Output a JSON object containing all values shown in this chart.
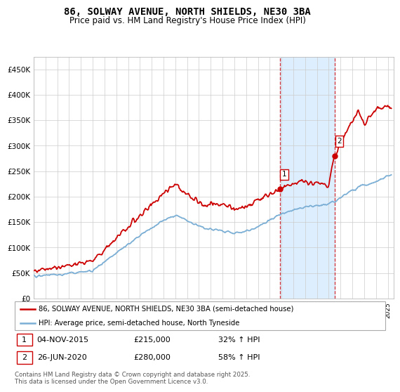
{
  "title": "86, SOLWAY AVENUE, NORTH SHIELDS, NE30 3BA",
  "subtitle": "Price paid vs. HM Land Registry's House Price Index (HPI)",
  "ylim": [
    0,
    475000
  ],
  "yticks": [
    0,
    50000,
    100000,
    150000,
    200000,
    250000,
    300000,
    350000,
    400000,
    450000
  ],
  "ytick_labels": [
    "£0",
    "£50K",
    "£100K",
    "£150K",
    "£200K",
    "£250K",
    "£300K",
    "£350K",
    "£400K",
    "£450K"
  ],
  "xlim_start": 1995.0,
  "xlim_end": 2025.5,
  "sale1_date": 2015.84,
  "sale1_price": 215000,
  "sale2_date": 2020.49,
  "sale2_price": 280000,
  "legend1_text": "86, SOLWAY AVENUE, NORTH SHIELDS, NE30 3BA (semi-detached house)",
  "legend2_text": "HPI: Average price, semi-detached house, North Tyneside",
  "annotation1_date": "04-NOV-2015",
  "annotation1_price": "£215,000",
  "annotation1_hpi": "32% ↑ HPI",
  "annotation2_date": "26-JUN-2020",
  "annotation2_price": "£280,000",
  "annotation2_hpi": "58% ↑ HPI",
  "footnote": "Contains HM Land Registry data © Crown copyright and database right 2025.\nThis data is licensed under the Open Government Licence v3.0.",
  "red_color": "#cc0000",
  "blue_color": "#7aaed4",
  "shading_color": "#ddeeff",
  "bg_color": "#ffffff"
}
